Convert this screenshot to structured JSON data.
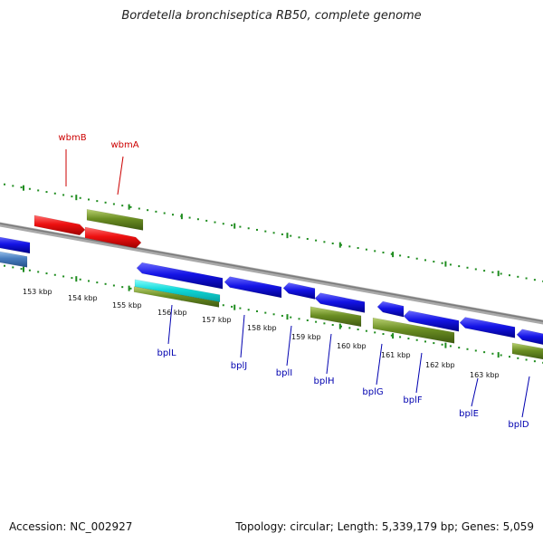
{
  "title": "Bordetella bronchiseptica RB50, complete genome",
  "footer": {
    "accession": "Accession: NC_002927",
    "summary": "Topology: circular; Length: 5,339,179 bp; Genes: 5,059"
  },
  "colors": {
    "backbone": "#8a8a8a",
    "ticks": "#1e8c1e",
    "forward_label": "#cc0000",
    "reverse_label": "#0000b0",
    "red_gene": "#ee1111",
    "blue_gene": "#1414e6",
    "olive_gene": "#6b8e23",
    "cyan_gene": "#10d8d8",
    "steel_gene": "#4a7fc0"
  },
  "scale_labels": [
    "153 kbp",
    "154 kbp",
    "155 kbp",
    "156 kbp",
    "157 kbp",
    "158 kbp",
    "159 kbp",
    "160 kbp",
    "161 kbp",
    "162 kbp",
    "163 kbp"
  ],
  "gene_labels_forward": [
    {
      "name": "wbmB"
    },
    {
      "name": "wbmA"
    }
  ],
  "gene_labels_reverse": [
    {
      "name": "bplL"
    },
    {
      "name": "bplJ"
    },
    {
      "name": "bplI"
    },
    {
      "name": "bplH"
    },
    {
      "name": "bplG"
    },
    {
      "name": "bplF"
    },
    {
      "name": "bplE"
    },
    {
      "name": "bplD"
    }
  ]
}
